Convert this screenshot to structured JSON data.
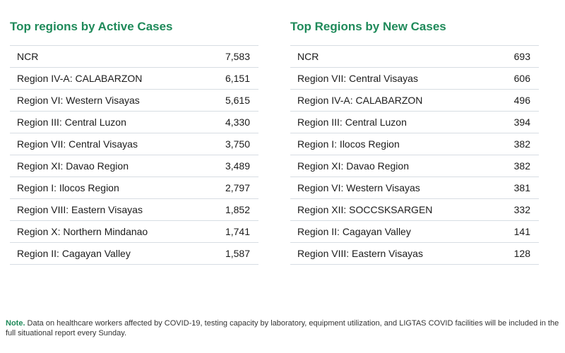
{
  "active": {
    "title": "Top regions by Active Cases",
    "rows": [
      {
        "region": "NCR",
        "value": "7,583"
      },
      {
        "region": "Region IV-A: CALABARZON",
        "value": "6,151"
      },
      {
        "region": "Region VI: Western Visayas",
        "value": "5,615"
      },
      {
        "region": "Region III: Central Luzon",
        "value": "4,330"
      },
      {
        "region": "Region VII: Central Visayas",
        "value": "3,750"
      },
      {
        "region": "Region XI: Davao Region",
        "value": "3,489"
      },
      {
        "region": "Region I: Ilocos Region",
        "value": "2,797"
      },
      {
        "region": "Region VIII: Eastern Visayas",
        "value": "1,852"
      },
      {
        "region": "Region X: Northern Mindanao",
        "value": "1,741"
      },
      {
        "region": "Region II: Cagayan Valley",
        "value": "1,587"
      }
    ]
  },
  "new": {
    "title": "Top Regions by New Cases",
    "rows": [
      {
        "region": "NCR",
        "value": "693"
      },
      {
        "region": "Region VII: Central Visayas",
        "value": "606"
      },
      {
        "region": "Region IV-A: CALABARZON",
        "value": "496"
      },
      {
        "region": "Region III: Central Luzon",
        "value": "394"
      },
      {
        "region": "Region I: Ilocos Region",
        "value": "382"
      },
      {
        "region": "Region XI: Davao Region",
        "value": "382"
      },
      {
        "region": "Region VI: Western Visayas",
        "value": "381"
      },
      {
        "region": "Region XII: SOCCSKSARGEN",
        "value": "332"
      },
      {
        "region": "Region II: Cagayan Valley",
        "value": "141"
      },
      {
        "region": "Region VIII: Eastern Visayas",
        "value": "128"
      }
    ]
  },
  "note": {
    "label": "Note.",
    "text": " Data on healthcare workers affected by COVID-19,  testing capacity by laboratory, equipment utilization, and LIGTAS COVID facilities will be included in the full situational report every Sunday."
  },
  "colors": {
    "accent": "#1f8a5a",
    "divider": "#d7dde3"
  }
}
